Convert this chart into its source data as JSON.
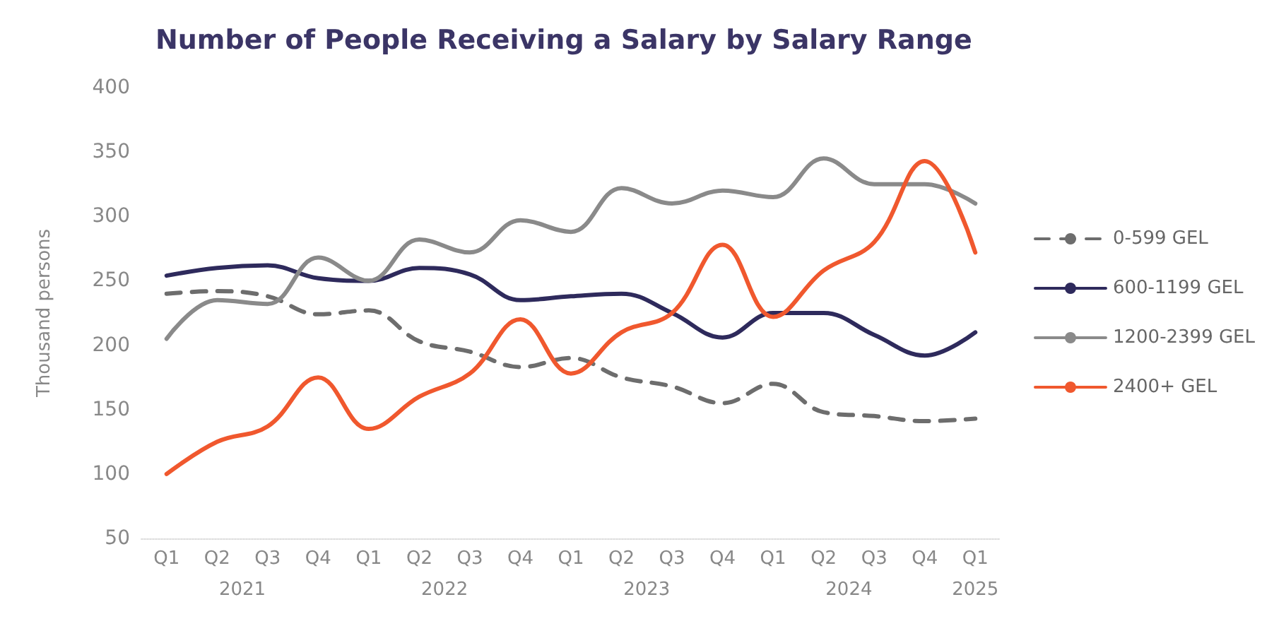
{
  "chart_data": {
    "type": "line",
    "title": "Number of People Receiving a Salary by Salary Range",
    "ylabel": "Thousand persons",
    "categories": [
      "Q1",
      "Q2",
      "Q3",
      "Q4",
      "Q1",
      "Q2",
      "Q3",
      "Q4",
      "Q1",
      "Q2",
      "Q3",
      "Q4",
      "Q1",
      "Q2",
      "Q3",
      "Q4",
      "Q1"
    ],
    "annotations": [
      "2021",
      "2022",
      "2023",
      "2024",
      "2025"
    ],
    "series": [
      {
        "name": "0-599 GEL",
        "color": "#6d6d6d",
        "line_style": "dashed",
        "values": [
          240,
          242,
          238,
          224,
          227,
          203,
          195,
          183,
          190,
          175,
          168,
          155,
          170,
          148,
          145,
          141,
          143
        ]
      },
      {
        "name": "600-1199 GEL",
        "color": "#2e2a5c",
        "line_style": "solid",
        "values": [
          254,
          260,
          262,
          252,
          250,
          260,
          255,
          235,
          238,
          240,
          225,
          206,
          225,
          225,
          208,
          192,
          210
        ]
      },
      {
        "name": "1200-2399 GEL",
        "color": "#8a8a8a",
        "line_style": "solid",
        "values": [
          205,
          235,
          232,
          268,
          250,
          282,
          272,
          297,
          288,
          322,
          310,
          320,
          315,
          345,
          325,
          325,
          310
        ]
      },
      {
        "name": "2400+ GEL",
        "color": "#f0582e",
        "line_style": "solid",
        "values": [
          100,
          125,
          137,
          175,
          135,
          160,
          178,
          220,
          178,
          210,
          225,
          278,
          222,
          258,
          280,
          343,
          272
        ]
      }
    ],
    "ylim": [
      50,
      400
    ],
    "yticks": [
      50,
      100,
      150,
      200,
      250,
      300,
      350,
      400
    ],
    "grid": false,
    "legend": "right",
    "marker": "none"
  }
}
